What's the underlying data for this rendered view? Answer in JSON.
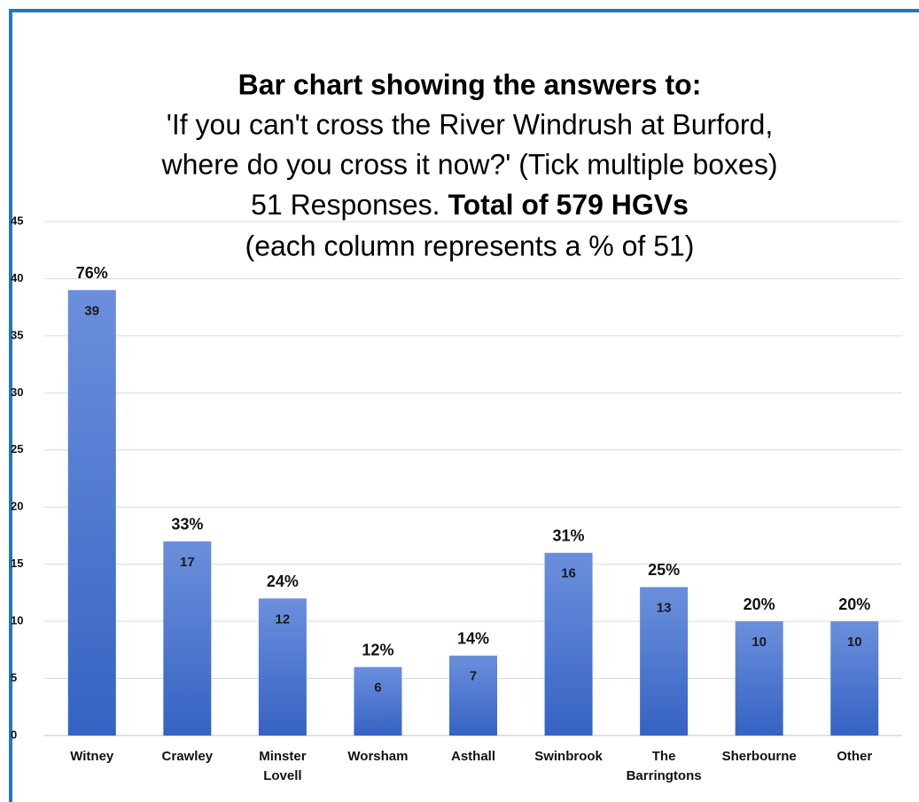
{
  "chart_data": {
    "type": "bar",
    "title": {
      "heading": "Bar chart showing the answers to:",
      "question_lines": [
        "'If you can't cross the River Windrush at Burford,",
        "where do you cross it now?' (Tick multiple boxes)"
      ],
      "responses": "51 Responses.",
      "total": "Total of 579 HGVs",
      "note": "(each column represents a % of 51)"
    },
    "categories": [
      "Witney",
      "Crawley",
      "Minster Lovell",
      "Worsham",
      "Asthall",
      "Swinbrook",
      "The Barringtons",
      "Sherbourne",
      "Other"
    ],
    "values": [
      39,
      17,
      12,
      6,
      7,
      16,
      13,
      10,
      10
    ],
    "percent_labels": [
      "76%",
      "33%",
      "24%",
      "12%",
      "14%",
      "31%",
      "25%",
      "20%",
      "20%"
    ],
    "color": "#4472c4",
    "ylim": [
      0,
      45
    ],
    "yticks": [
      0,
      5,
      10,
      15,
      20,
      25,
      30,
      35,
      40,
      45
    ],
    "grid": true
  }
}
